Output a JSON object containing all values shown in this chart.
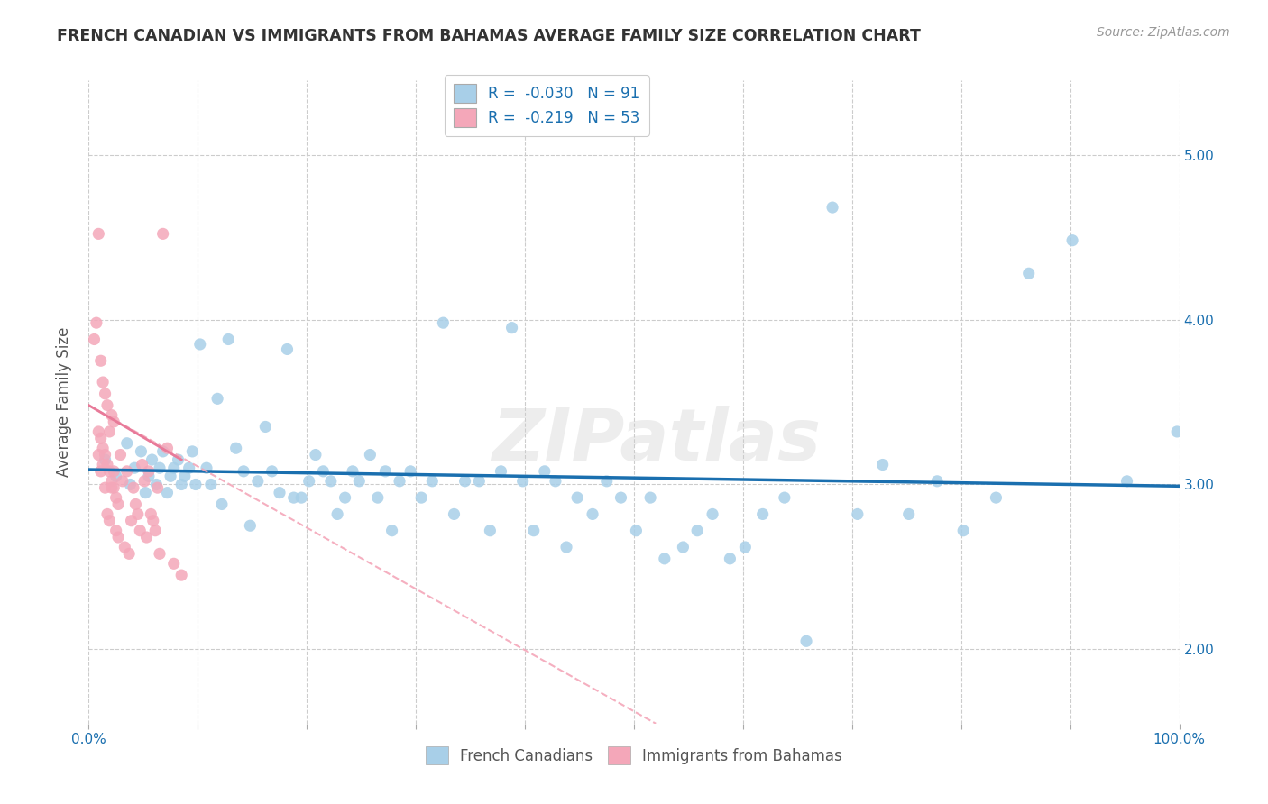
{
  "title": "FRENCH CANADIAN VS IMMIGRANTS FROM BAHAMAS AVERAGE FAMILY SIZE CORRELATION CHART",
  "source_text": "Source: ZipAtlas.com",
  "ylabel": "Average Family Size",
  "xlim": [
    0.0,
    1.0
  ],
  "ylim": [
    1.55,
    5.45
  ],
  "yticks": [
    2.0,
    3.0,
    4.0,
    5.0
  ],
  "xticks": [
    0.0,
    0.1,
    0.2,
    0.3,
    0.4,
    0.5,
    0.6,
    0.7,
    0.8,
    0.9,
    1.0
  ],
  "xtick_labels": [
    "0.0%",
    "",
    "",
    "",
    "",
    "",
    "",
    "",
    "",
    "",
    "100.0%"
  ],
  "blue_color": "#a8cfe8",
  "blue_line_color": "#1a6faf",
  "pink_color": "#f4a7b9",
  "pink_line_color": "#e87a99",
  "legend_blue_label": "R =  -0.030   N = 91",
  "legend_pink_label": "R =  -0.219   N = 53",
  "watermark": "ZIPatlas",
  "blue_scatter_x": [
    0.015,
    0.025,
    0.035,
    0.038,
    0.042,
    0.048,
    0.052,
    0.055,
    0.058,
    0.062,
    0.065,
    0.068,
    0.072,
    0.075,
    0.078,
    0.082,
    0.085,
    0.088,
    0.092,
    0.095,
    0.098,
    0.102,
    0.108,
    0.112,
    0.118,
    0.122,
    0.128,
    0.135,
    0.142,
    0.148,
    0.155,
    0.162,
    0.168,
    0.175,
    0.182,
    0.188,
    0.195,
    0.202,
    0.208,
    0.215,
    0.222,
    0.228,
    0.235,
    0.242,
    0.248,
    0.258,
    0.265,
    0.272,
    0.278,
    0.285,
    0.295,
    0.305,
    0.315,
    0.325,
    0.335,
    0.345,
    0.358,
    0.368,
    0.378,
    0.388,
    0.398,
    0.408,
    0.418,
    0.428,
    0.438,
    0.448,
    0.462,
    0.475,
    0.488,
    0.502,
    0.515,
    0.528,
    0.545,
    0.558,
    0.572,
    0.588,
    0.602,
    0.618,
    0.638,
    0.658,
    0.682,
    0.705,
    0.728,
    0.752,
    0.778,
    0.802,
    0.832,
    0.862,
    0.902,
    0.952,
    0.998
  ],
  "blue_scatter_y": [
    3.15,
    3.05,
    3.25,
    3.0,
    3.1,
    3.2,
    2.95,
    3.05,
    3.15,
    3.0,
    3.1,
    3.2,
    2.95,
    3.05,
    3.1,
    3.15,
    3.0,
    3.05,
    3.1,
    3.2,
    3.0,
    3.85,
    3.1,
    3.0,
    3.52,
    2.88,
    3.88,
    3.22,
    3.08,
    2.75,
    3.02,
    3.35,
    3.08,
    2.95,
    3.82,
    2.92,
    2.92,
    3.02,
    3.18,
    3.08,
    3.02,
    2.82,
    2.92,
    3.08,
    3.02,
    3.18,
    2.92,
    3.08,
    2.72,
    3.02,
    3.08,
    2.92,
    3.02,
    3.98,
    2.82,
    3.02,
    3.02,
    2.72,
    3.08,
    3.95,
    3.02,
    2.72,
    3.08,
    3.02,
    2.62,
    2.92,
    2.82,
    3.02,
    2.92,
    2.72,
    2.92,
    2.55,
    2.62,
    2.72,
    2.82,
    2.55,
    2.62,
    2.82,
    2.92,
    2.05,
    4.68,
    2.82,
    3.12,
    2.82,
    3.02,
    2.72,
    2.92,
    4.28,
    4.48,
    3.02,
    3.32
  ],
  "pink_scatter_x": [
    0.005,
    0.007,
    0.009,
    0.011,
    0.013,
    0.015,
    0.017,
    0.019,
    0.021,
    0.023,
    0.009,
    0.011,
    0.013,
    0.015,
    0.017,
    0.019,
    0.021,
    0.023,
    0.025,
    0.027,
    0.009,
    0.011,
    0.013,
    0.015,
    0.017,
    0.019,
    0.021,
    0.023,
    0.025,
    0.027,
    0.029,
    0.031,
    0.033,
    0.035,
    0.037,
    0.039,
    0.041,
    0.043,
    0.045,
    0.047,
    0.049,
    0.051,
    0.053,
    0.055,
    0.057,
    0.059,
    0.061,
    0.063,
    0.065,
    0.068,
    0.072,
    0.078,
    0.085
  ],
  "pink_scatter_y": [
    3.88,
    3.98,
    4.52,
    3.75,
    3.62,
    3.55,
    3.48,
    3.32,
    3.42,
    3.38,
    3.32,
    3.28,
    3.22,
    3.18,
    3.12,
    3.08,
    3.02,
    2.98,
    2.92,
    2.88,
    3.18,
    3.08,
    3.12,
    2.98,
    2.82,
    2.78,
    2.98,
    3.08,
    2.72,
    2.68,
    3.18,
    3.02,
    2.62,
    3.08,
    2.58,
    2.78,
    2.98,
    2.88,
    2.82,
    2.72,
    3.12,
    3.02,
    2.68,
    3.08,
    2.82,
    2.78,
    2.72,
    2.98,
    2.58,
    4.52,
    3.22,
    2.52,
    2.45
  ],
  "blue_trendline_x": [
    0.0,
    1.0
  ],
  "blue_trendline_y": [
    3.09,
    2.99
  ],
  "pink_trendline_x": [
    0.0,
    0.52
  ],
  "pink_trendline_y": [
    3.48,
    1.55
  ],
  "background_color": "#ffffff",
  "grid_color": "#cccccc",
  "title_color": "#333333",
  "axis_color": "#1a6faf"
}
